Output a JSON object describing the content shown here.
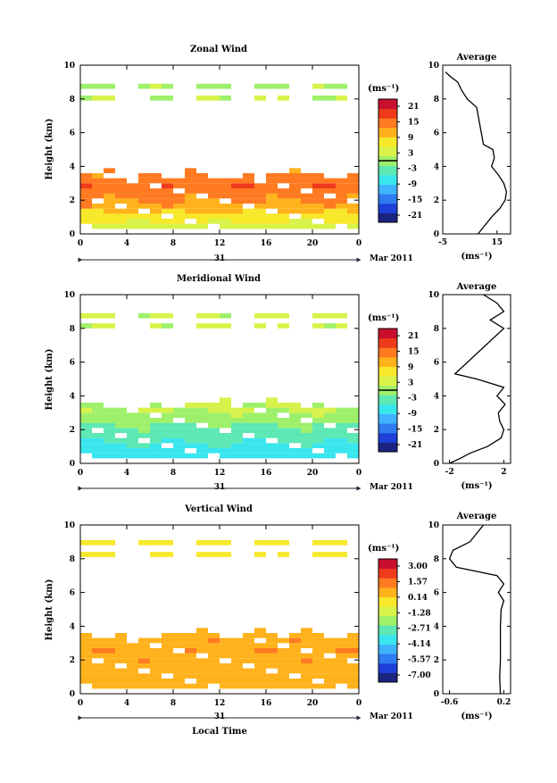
{
  "panels": [
    {
      "key": "zonal",
      "title": "Zonal Wind",
      "ylabel": "Height (km)",
      "ylim": [
        0,
        10
      ],
      "yticks": [
        "0",
        "2",
        "4",
        "6",
        "8",
        "10"
      ],
      "xticks": [
        "0",
        "4",
        "8",
        "12",
        "16",
        "20",
        "0"
      ],
      "day_label": "31",
      "date_label": "Mar 2011",
      "xlabel": "",
      "unit_label": "(ms⁻¹)",
      "colorbar_ticks": [
        "21",
        "15",
        "9",
        "3",
        "-3",
        "-9",
        "-15",
        "-21"
      ],
      "avg_title": "Average",
      "avg_xticks": [
        "-5",
        "15"
      ],
      "avg_xlim": [
        -5,
        20
      ],
      "avg_unit": "(ms⁻¹)"
    },
    {
      "key": "meridional",
      "title": "Meridional Wind",
      "ylabel": "Height (km)",
      "ylim": [
        0,
        10
      ],
      "yticks": [
        "0",
        "2",
        "4",
        "6",
        "8",
        "10"
      ],
      "xticks": [
        "0",
        "4",
        "8",
        "12",
        "16",
        "20",
        "0"
      ],
      "day_label": "31",
      "date_label": "Mar 2011",
      "xlabel": "",
      "unit_label": "(ms⁻¹)",
      "colorbar_ticks": [
        "21",
        "15",
        "9",
        "3",
        "-3",
        "-9",
        "-15",
        "-21"
      ],
      "avg_title": "Average",
      "avg_xticks": [
        "-2",
        "2"
      ],
      "avg_xlim": [
        -2.5,
        2.5
      ],
      "avg_unit": "(ms⁻¹)"
    },
    {
      "key": "vertical",
      "title": "Vertical Wind",
      "ylabel": "Height (km)",
      "ylim": [
        0,
        10
      ],
      "yticks": [
        "0",
        "2",
        "4",
        "6",
        "8",
        "10"
      ],
      "xticks": [
        "0",
        "4",
        "8",
        "12",
        "16",
        "20",
        "0"
      ],
      "day_label": "31",
      "date_label": "Mar 2011",
      "xlabel": "Local Time",
      "unit_label": "(ms⁻¹)",
      "colorbar_ticks": [
        "3.00",
        "1.57",
        "0.14",
        "-1.28",
        "-2.71",
        "-4.14",
        "-5.57",
        "-7.00"
      ],
      "avg_title": "Average",
      "avg_xticks": [
        "-0.6",
        "0.2"
      ],
      "avg_xlim": [
        -0.7,
        0.3
      ],
      "avg_unit": "(ms⁻¹)"
    }
  ],
  "colors": {
    "colormap": [
      "#1a237e",
      "#1e3fd8",
      "#2f7bf0",
      "#3fb3ff",
      "#39e6ee",
      "#5de8b4",
      "#9ef06a",
      "#d8f24a",
      "#f7e82a",
      "#ffb21c",
      "#ff7a20",
      "#ef3b1c",
      "#c8102e"
    ],
    "frame": "#000000"
  },
  "chart_data": [
    {
      "type": "heatmap",
      "title": "Zonal Wind",
      "xlabel": "",
      "ylabel": "Height (km)",
      "xlim": [
        0,
        24
      ],
      "ylim": [
        0,
        10
      ],
      "clim": [
        -24,
        24
      ],
      "heights_km": [
        0.3,
        0.6,
        0.9,
        1.2,
        1.5,
        1.8,
        2.1,
        2.4,
        2.7,
        3.0,
        3.3,
        3.6,
        4.1,
        4.7,
        7.9,
        8.6
      ],
      "hourly_profile_note_free": true,
      "wind_by_height_ms": [
        4,
        6,
        8,
        10,
        12,
        13,
        14,
        15,
        16,
        15,
        14,
        13,
        12,
        10,
        2,
        1
      ],
      "coverage_top_km": [
        3.4,
        3.4,
        3.6,
        3.2,
        3.1,
        3.3,
        3.5,
        3.0,
        3.2,
        3.6,
        3.4,
        3.1,
        3.0,
        3.3,
        3.5,
        3.2,
        3.3,
        3.4,
        3.6,
        3.3,
        3.5,
        3.2,
        3.0,
        3.4
      ],
      "average_profile": {
        "height_km": [
          0.0,
          0.5,
          1.0,
          1.5,
          2.0,
          2.5,
          3.0,
          3.5,
          4.0,
          4.5,
          5.0,
          5.3,
          7.5,
          8.0,
          8.5,
          9.0,
          9.3,
          9.6
        ],
        "value_ms": [
          8.0,
          10.5,
          13.0,
          16.0,
          18.0,
          18.5,
          17.5,
          15.5,
          13.0,
          14.0,
          13.5,
          10.0,
          7.5,
          4.0,
          2.0,
          0.5,
          -2.0,
          -4.0
        ]
      }
    },
    {
      "type": "heatmap",
      "title": "Meridional Wind",
      "xlabel": "",
      "ylabel": "Height (km)",
      "xlim": [
        0,
        24
      ],
      "ylim": [
        0,
        10
      ],
      "clim": [
        -24,
        24
      ],
      "heights_km": [
        0.3,
        0.6,
        0.9,
        1.2,
        1.5,
        1.8,
        2.1,
        2.4,
        2.7,
        3.0,
        3.3,
        3.6,
        4.1,
        4.5,
        8.0,
        8.6
      ],
      "wind_by_height_ms": [
        -8,
        -7,
        -6,
        -5,
        -4,
        -3,
        -2,
        0,
        1,
        2,
        2,
        3,
        2,
        1,
        3,
        3
      ],
      "coverage_top_km": [
        3.4,
        3.3,
        3.2,
        3.0,
        2.9,
        3.1,
        3.3,
        3.2,
        3.1,
        3.5,
        3.4,
        3.3,
        3.6,
        3.4,
        3.5,
        3.3,
        3.6,
        3.5,
        3.4,
        3.2,
        3.3,
        3.1,
        3.0,
        3.2
      ],
      "average_profile": {
        "height_km": [
          0.0,
          0.3,
          0.6,
          1.0,
          1.5,
          2.0,
          2.5,
          3.0,
          3.5,
          4.0,
          4.5,
          5.0,
          5.3,
          8.0,
          8.5,
          9.0,
          9.5,
          10.0
        ],
        "value_ms": [
          -2.0,
          -1.2,
          -0.5,
          0.8,
          1.8,
          2.0,
          1.7,
          1.6,
          2.1,
          1.5,
          2.0,
          0.0,
          -1.6,
          2.0,
          1.0,
          2.0,
          1.5,
          0.5
        ]
      }
    },
    {
      "type": "heatmap",
      "title": "Vertical Wind",
      "xlabel": "Local Time",
      "ylabel": "Height (km)",
      "xlim": [
        0,
        24
      ],
      "ylim": [
        0,
        10
      ],
      "clim": [
        -7.0,
        3.0
      ],
      "heights_km": [
        0.3,
        0.6,
        0.9,
        1.2,
        1.5,
        1.8,
        2.1,
        2.4,
        2.7,
        3.0,
        3.3,
        3.6,
        4.1,
        4.6,
        8.1,
        8.8
      ],
      "wind_by_height_ms": [
        0.2,
        0.3,
        0.2,
        0.3,
        0.4,
        0.5,
        0.3,
        0.6,
        0.4,
        0.5,
        0.3,
        0.2,
        0.3,
        0.2,
        -0.4,
        -0.5
      ],
      "coverage_top_km": [
        3.5,
        3.2,
        3.0,
        3.3,
        3.1,
        3.0,
        3.2,
        3.4,
        3.3,
        3.5,
        3.6,
        3.4,
        3.2,
        3.5,
        3.3,
        3.6,
        3.4,
        3.1,
        3.3,
        3.6,
        3.4,
        3.2,
        3.1,
        3.4
      ],
      "average_profile": {
        "height_km": [
          0.0,
          1.0,
          2.0,
          3.0,
          4.0,
          5.0,
          5.5,
          6.0,
          6.5,
          7.0,
          7.5,
          8.0,
          8.5,
          9.0,
          9.5,
          10.0
        ],
        "value_ms": [
          0.15,
          0.14,
          0.15,
          0.15,
          0.15,
          0.16,
          0.2,
          0.12,
          0.2,
          0.1,
          -0.5,
          -0.6,
          -0.55,
          -0.3,
          -0.2,
          -0.1
        ]
      }
    }
  ]
}
